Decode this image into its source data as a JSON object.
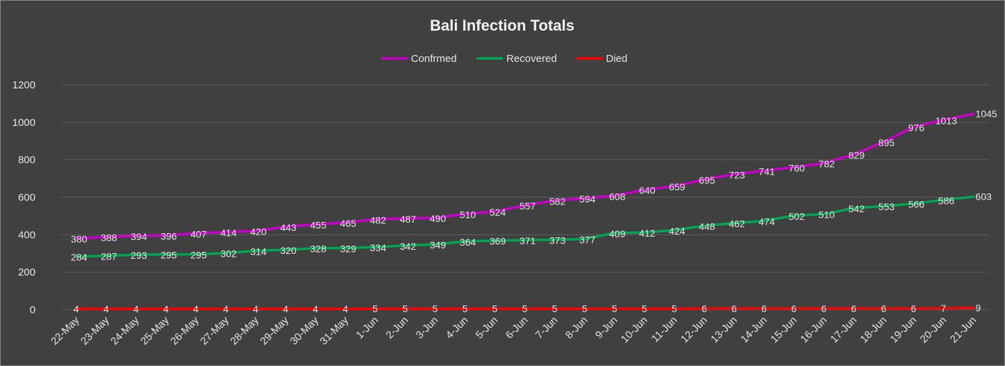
{
  "chart_data": {
    "type": "line",
    "title": "Bali Infection Totals",
    "xlabel": "",
    "ylabel": "",
    "ylim": [
      0,
      1200
    ],
    "yticks": [
      0,
      200,
      400,
      600,
      800,
      1000,
      1200
    ],
    "grid": true,
    "legend_position": "top",
    "categories": [
      "22-May",
      "23-May",
      "24-May",
      "25-May",
      "26-May",
      "27-May",
      "28-May",
      "29-May",
      "30-May",
      "31-May",
      "1-Jun",
      "2-Jun",
      "3-Jun",
      "4-Jun",
      "5-Jun",
      "6-Jun",
      "7-Jun",
      "8-Jun",
      "9-Jun",
      "10-Jun",
      "11-Jun",
      "12-Jun",
      "13-Jun",
      "14-Jun",
      "15-Jun",
      "16-Jun",
      "17-Jun",
      "18-Jun",
      "19-Jun",
      "20-Jun",
      "21-Jun"
    ],
    "series": [
      {
        "name": "Confrmed",
        "color": "#cc00cc",
        "values": [
          380,
          388,
          394,
          396,
          407,
          414,
          420,
          443,
          455,
          465,
          482,
          487,
          490,
          510,
          524,
          557,
          582,
          594,
          608,
          640,
          659,
          695,
          723,
          741,
          760,
          782,
          829,
          895,
          976,
          1013,
          1045
        ]
      },
      {
        "name": "Recovered",
        "color": "#00a651",
        "values": [
          284,
          287,
          293,
          295,
          295,
          302,
          314,
          320,
          328,
          329,
          334,
          342,
          349,
          364,
          369,
          371,
          373,
          377,
          409,
          412,
          424,
          448,
          462,
          474,
          502,
          510,
          542,
          553,
          566,
          586,
          603
        ]
      },
      {
        "name": "Died",
        "color": "#ff0000",
        "values": [
          4,
          4,
          4,
          4,
          4,
          4,
          4,
          4,
          4,
          4,
          5,
          5,
          5,
          5,
          5,
          5,
          5,
          5,
          5,
          5,
          5,
          6,
          6,
          6,
          6,
          6,
          6,
          6,
          6,
          7,
          9
        ]
      }
    ]
  }
}
